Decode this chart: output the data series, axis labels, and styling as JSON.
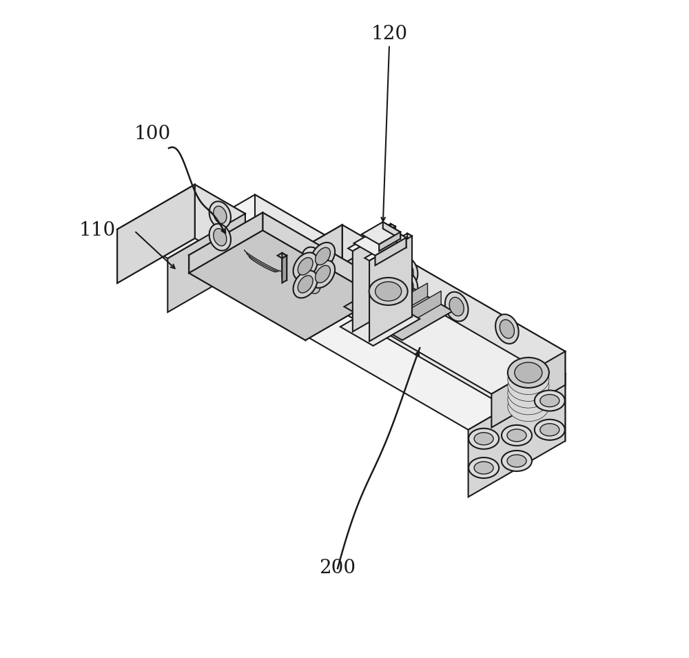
{
  "bg_color": "#ffffff",
  "line_color": "#1a1a1a",
  "top_face_color": "#f2f2f2",
  "front_face_color": "#e8e8e8",
  "right_face_color": "#d5d5d5",
  "hole_outer": "#d0d0d0",
  "hole_inner": "#b0b0b0",
  "label_100": "100",
  "label_110": "110",
  "label_120": "120",
  "label_200": "200",
  "font_size_label": 20,
  "line_width": 1.5,
  "lw_thin": 1.0
}
